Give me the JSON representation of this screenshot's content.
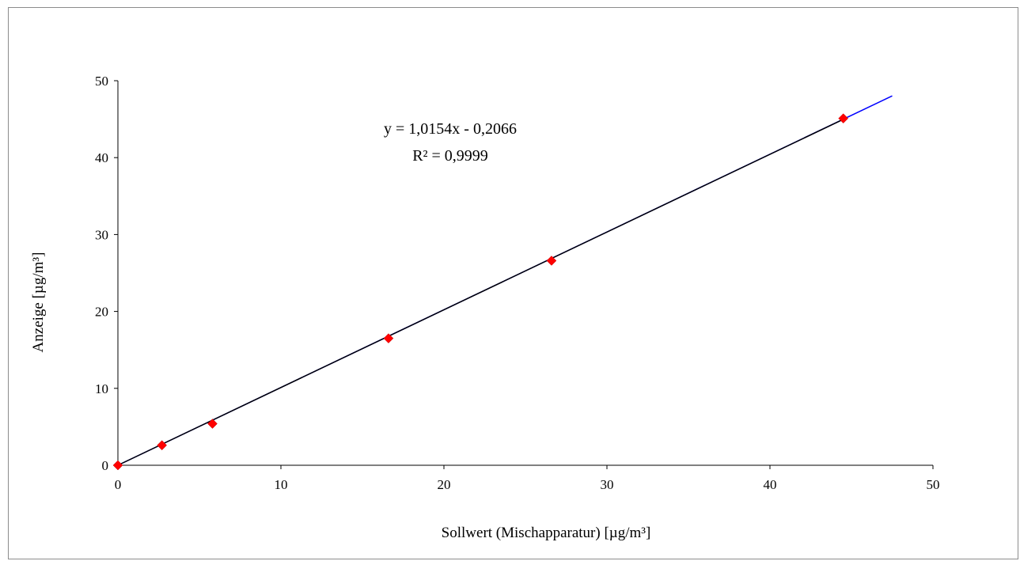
{
  "chart_data": {
    "type": "scatter",
    "xlabel": "Sollwert (Mischapparatur) [µg/m³]",
    "ylabel": "Anzeige [µg/m³]",
    "xlim": [
      0,
      50
    ],
    "ylim": [
      0,
      50
    ],
    "xticks": [
      0,
      10,
      20,
      30,
      40,
      50
    ],
    "yticks": [
      0,
      10,
      20,
      30,
      40,
      50
    ],
    "grid": false,
    "legend": "none",
    "series": [
      {
        "marker": "diamond",
        "color": "#ff0000",
        "x": [
          0,
          2.7,
          5.8,
          16.6,
          26.6,
          44.5
        ],
        "y": [
          0,
          2.6,
          5.4,
          16.5,
          26.6,
          45.1
        ]
      }
    ],
    "trendline": {
      "slope": 1.0154,
      "intercept": -0.2066,
      "x_range": [
        0,
        47.5
      ],
      "color": "#0000ff",
      "equation": "y = 1,0154x - 0,2066",
      "r_squared": "R² = 0,9999"
    },
    "reference_line": {
      "x_range": [
        0,
        44.5
      ],
      "color": "#000000"
    }
  }
}
